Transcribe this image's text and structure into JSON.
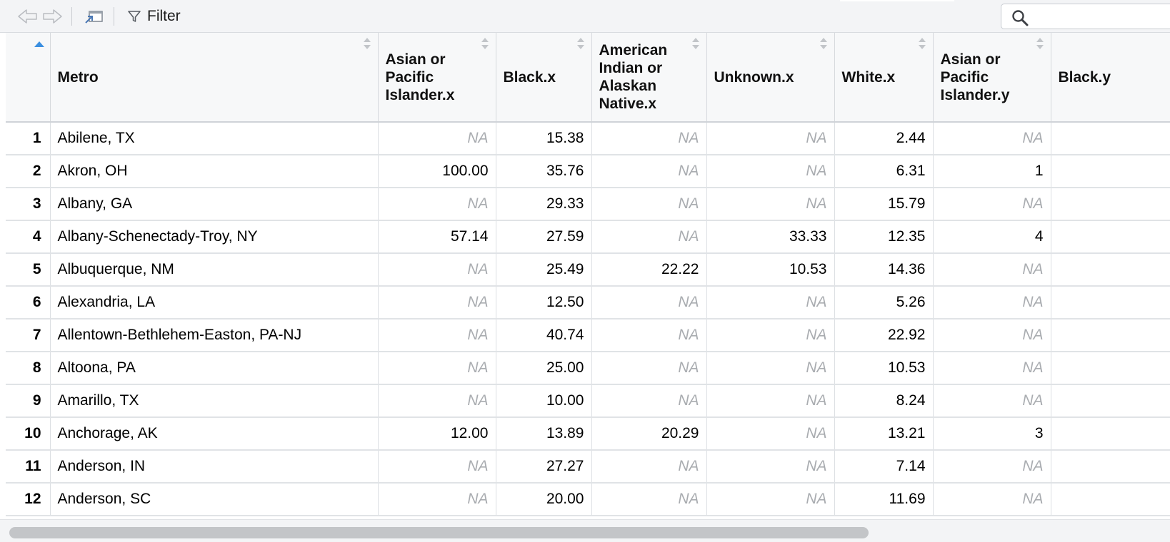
{
  "toolbar": {
    "back_icon": "arrow-left-icon",
    "forward_icon": "arrow-right-icon",
    "popout_icon": "popout-window-icon",
    "filter_icon": "funnel-icon",
    "filter_label": "Filter",
    "search_icon": "magnifier-icon",
    "search_value": ""
  },
  "columns": [
    "",
    "Metro",
    "Asian or Pacific Islander.x",
    "Black.x",
    "American Indian or Alaskan Native.x",
    "Unknown.x",
    "White.x",
    "Asian or Pacific Islander.y",
    "Black.y"
  ],
  "rows": [
    [
      "1",
      "Abilene, TX",
      "NA",
      "15.38",
      "NA",
      "NA",
      "2.44",
      "NA",
      ""
    ],
    [
      "2",
      "Akron, OH",
      "100.00",
      "35.76",
      "NA",
      "NA",
      "6.31",
      "1",
      ""
    ],
    [
      "3",
      "Albany, GA",
      "NA",
      "29.33",
      "NA",
      "NA",
      "15.79",
      "NA",
      ""
    ],
    [
      "4",
      "Albany-Schenectady-Troy, NY",
      "57.14",
      "27.59",
      "NA",
      "33.33",
      "12.35",
      "4",
      ""
    ],
    [
      "5",
      "Albuquerque, NM",
      "NA",
      "25.49",
      "22.22",
      "10.53",
      "14.36",
      "NA",
      ""
    ],
    [
      "6",
      "Alexandria, LA",
      "NA",
      "12.50",
      "NA",
      "NA",
      "5.26",
      "NA",
      ""
    ],
    [
      "7",
      "Allentown-Bethlehem-Easton, PA-NJ",
      "NA",
      "40.74",
      "NA",
      "NA",
      "22.92",
      "NA",
      ""
    ],
    [
      "8",
      "Altoona, PA",
      "NA",
      "25.00",
      "NA",
      "NA",
      "10.53",
      "NA",
      ""
    ],
    [
      "9",
      "Amarillo, TX",
      "NA",
      "10.00",
      "NA",
      "NA",
      "8.24",
      "NA",
      ""
    ],
    [
      "10",
      "Anchorage, AK",
      "12.00",
      "13.89",
      "20.29",
      "NA",
      "13.21",
      "3",
      ""
    ],
    [
      "11",
      "Anderson, IN",
      "NA",
      "27.27",
      "NA",
      "NA",
      "7.14",
      "NA",
      ""
    ],
    [
      "12",
      "Anderson, SC",
      "NA",
      "20.00",
      "NA",
      "NA",
      "11.69",
      "NA",
      ""
    ]
  ],
  "colors": {
    "sort_active": "#3b8fe0",
    "na_text": "#a9acb0",
    "header_bg": "#f7f8f9"
  }
}
